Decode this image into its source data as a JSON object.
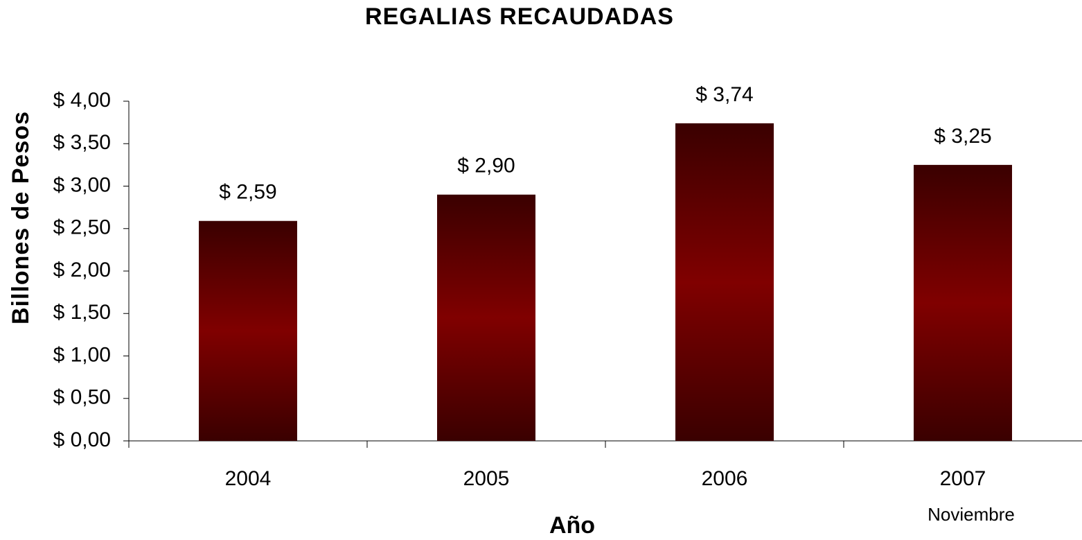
{
  "chart_data": {
    "type": "bar",
    "title": "REGALIAS RECAUDADAS",
    "xlabel": "Año",
    "ylabel": "Billones de Pesos",
    "annotation": "Noviembre",
    "categories": [
      "2004",
      "2005",
      "2006",
      "2007"
    ],
    "values": [
      2.59,
      2.9,
      3.74,
      3.25
    ],
    "value_labels": [
      "$ 2,59",
      "$ 2,90",
      "$ 3,74",
      "$ 3,25"
    ],
    "color": "#800000",
    "ylim": [
      0,
      4
    ],
    "yticks": [
      {
        "value": 0,
        "label": "$ 0,00"
      },
      {
        "value": 0.5,
        "label": "$ 0,50"
      },
      {
        "value": 1,
        "label": "$ 1,00"
      },
      {
        "value": 1.5,
        "label": "$ 1,50"
      },
      {
        "value": 2,
        "label": "$ 2,00"
      },
      {
        "value": 2.5,
        "label": "$ 2,50"
      },
      {
        "value": 3,
        "label": "$ 3,00"
      },
      {
        "value": 3.5,
        "label": "$ 3,50"
      },
      {
        "value": 4,
        "label": "$ 4,00"
      }
    ],
    "grid": false
  }
}
